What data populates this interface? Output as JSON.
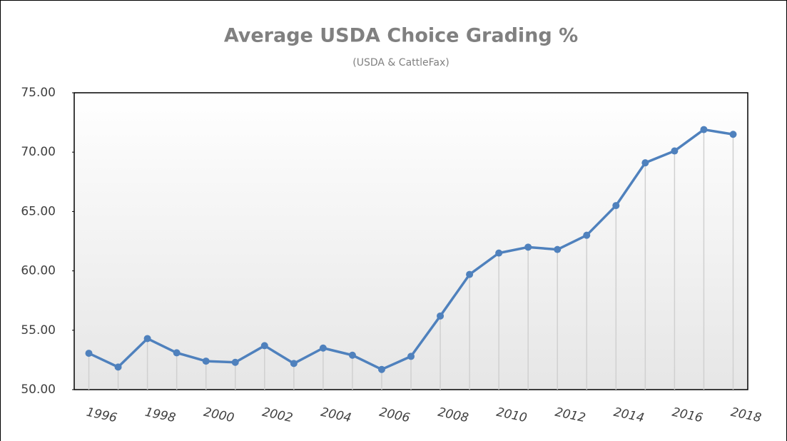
{
  "chart_data": {
    "type": "line",
    "title": "Average USDA Choice Grading %",
    "subtitle": "(USDA & CattleFax)",
    "categories": [
      "1996",
      null,
      "1998",
      null,
      "2000",
      null,
      "2002",
      null,
      "2004",
      null,
      "2006",
      null,
      "2008",
      null,
      "2010",
      null,
      "2012",
      null,
      "2014",
      null,
      "2016",
      null,
      "2018"
    ],
    "series": [
      {
        "name": "Average USDA Choice Grading %",
        "color": "#4f81bd",
        "values": [
          53.06,
          51.9,
          54.3,
          53.1,
          52.4,
          52.3,
          53.7,
          52.2,
          53.5,
          52.9,
          51.7,
          52.8,
          56.2,
          59.7,
          61.5,
          62.0,
          61.8,
          63.0,
          65.5,
          69.1,
          70.1,
          71.9,
          71.5
        ]
      }
    ],
    "ylim": [
      50,
      75
    ],
    "yticks": [
      {
        "value": 50,
        "label": "50.00"
      },
      {
        "value": 55,
        "label": "55.00"
      },
      {
        "value": 60,
        "label": "60.00"
      },
      {
        "value": 65,
        "label": "65.00"
      },
      {
        "value": 70,
        "label": "70.00"
      },
      {
        "value": 75,
        "label": "75.00"
      }
    ],
    "drop_lines": true
  }
}
